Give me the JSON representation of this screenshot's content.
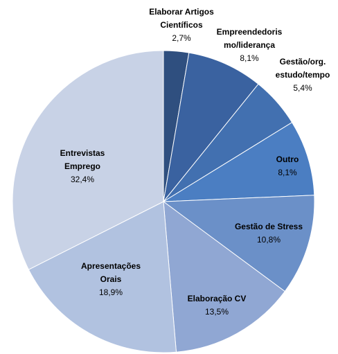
{
  "chart_data": {
    "type": "pie",
    "categories": [
      [
        "Elaborar Artigos",
        "Científicos"
      ],
      [
        "Empreendedoris",
        "mo/liderança"
      ],
      [
        "Gestão/org.",
        "estudo/tempo"
      ],
      [
        "Outro"
      ],
      [
        "Gestão de Stress"
      ],
      [
        "Elaboração CV"
      ],
      [
        "Apresentações",
        "Orais"
      ],
      [
        "Entrevistas",
        "Emprego"
      ]
    ],
    "values": [
      2.7,
      8.1,
      5.4,
      8.1,
      10.8,
      13.5,
      18.9,
      32.4
    ],
    "value_labels": [
      "2,7%",
      "8,1%",
      "5,4%",
      "8,1%",
      "10,8%",
      "13,5%",
      "18,9%",
      "32,4%"
    ],
    "colors": [
      "#2f4f7f",
      "#3a62a0",
      "#4270b0",
      "#4b7ec2",
      "#6b90c8",
      "#90a7d3",
      "#b1c2e0",
      "#c8d2e6"
    ]
  }
}
